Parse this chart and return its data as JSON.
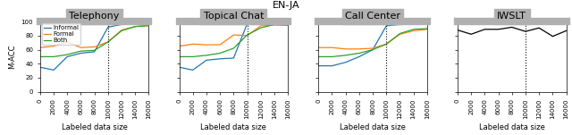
{
  "title": "EN-JA",
  "subplots": [
    {
      "title": "Telephony",
      "x": [
        0,
        2000,
        4000,
        6000,
        8000,
        10000,
        12000,
        14000,
        16000
      ],
      "informal": [
        35,
        31,
        50,
        55,
        57,
        92,
        96,
        96,
        97
      ],
      "formal": [
        63,
        65,
        71,
        63,
        64,
        71,
        88,
        93,
        95
      ],
      "both": [
        50,
        50,
        53,
        58,
        59,
        71,
        87,
        93,
        94
      ],
      "ylim": [
        0,
        100
      ],
      "yticks": [
        0,
        20,
        40,
        60,
        80,
        100
      ]
    },
    {
      "title": "Topical Chat",
      "x": [
        0,
        2000,
        4000,
        6000,
        8000,
        10000,
        12000,
        14000,
        16000
      ],
      "informal": [
        35,
        31,
        45,
        47,
        48,
        97,
        98,
        97,
        97
      ],
      "formal": [
        65,
        68,
        67,
        67,
        81,
        80,
        94,
        95,
        95
      ],
      "both": [
        50,
        50,
        52,
        55,
        62,
        81,
        91,
        96,
        95
      ],
      "ylim": [
        0,
        100
      ],
      "yticks": [
        0,
        20,
        40,
        60,
        80,
        100
      ]
    },
    {
      "title": "Call Center",
      "x": [
        0,
        2000,
        4000,
        6000,
        8000,
        10000,
        12000,
        14000,
        16000
      ],
      "informal": [
        37,
        37,
        42,
        50,
        60,
        94,
        96,
        97,
        97
      ],
      "formal": [
        63,
        63,
        61,
        61,
        62,
        68,
        82,
        87,
        89
      ],
      "both": [
        50,
        50,
        52,
        55,
        60,
        68,
        83,
        89,
        90
      ],
      "ylim": [
        0,
        100
      ],
      "yticks": [
        0,
        20,
        40,
        60,
        80,
        100
      ]
    },
    {
      "title": "IWSLT",
      "x": [
        0,
        2000,
        4000,
        6000,
        8000,
        10000,
        12000,
        14000,
        16000
      ],
      "bleu": [
        14.4,
        14.1,
        14.45,
        14.45,
        14.6,
        14.3,
        14.55,
        13.95,
        14.35
      ],
      "ylim": [
        10,
        15
      ],
      "yticks": [
        10,
        11,
        12,
        13,
        14,
        15
      ]
    }
  ],
  "colors": {
    "informal": "#1f77b4",
    "formal": "#ff7f0e",
    "both": "#2ca02c",
    "bleu": "#000000"
  },
  "vline_x": 10000,
  "xlabel": "Labeled data size",
  "ylabel": "M-ACC",
  "legend_labels": [
    "Informal",
    "Formal",
    "Both"
  ],
  "title_fontsize": 8,
  "axis_fontsize": 6,
  "tick_fontsize": 5,
  "gray_bar_color": "#b0b0b0"
}
